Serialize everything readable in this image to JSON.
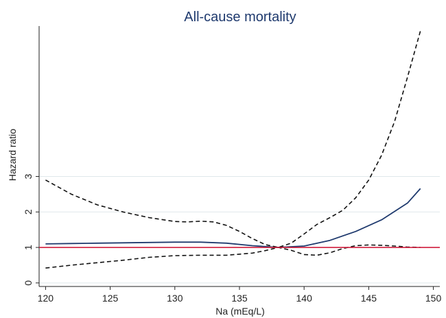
{
  "chart_data": {
    "type": "line",
    "title": "All-cause mortality",
    "xlabel": "Na (mEq/L)",
    "ylabel": "Hazard ratio",
    "xlim": [
      119.5,
      150.5
    ],
    "ylim": [
      -0.1,
      7.2
    ],
    "x_ticks": [
      120,
      125,
      130,
      135,
      140,
      145,
      150
    ],
    "y_ticks": [
      0,
      1,
      2,
      3
    ],
    "grid": "horizontal at labeled y ticks",
    "reference_line": {
      "y": 1,
      "color": "#d01c3c"
    },
    "series": [
      {
        "color": "#1f3a6e",
        "style": "solid",
        "points": [
          [
            120,
            1.1
          ],
          [
            122,
            1.11
          ],
          [
            124,
            1.12
          ],
          [
            126,
            1.13
          ],
          [
            128,
            1.14
          ],
          [
            130,
            1.15
          ],
          [
            132,
            1.15
          ],
          [
            134,
            1.12
          ],
          [
            136,
            1.05
          ],
          [
            138,
            1.0
          ],
          [
            140,
            1.04
          ],
          [
            142,
            1.2
          ],
          [
            144,
            1.45
          ],
          [
            146,
            1.78
          ],
          [
            148,
            2.25
          ],
          [
            149,
            2.66
          ]
        ]
      },
      {
        "color": "#111111",
        "style": "dashed",
        "points": [
          [
            120,
            2.9
          ],
          [
            122,
            2.5
          ],
          [
            124,
            2.2
          ],
          [
            126,
            2.0
          ],
          [
            128,
            1.84
          ],
          [
            130,
            1.73
          ],
          [
            131,
            1.72
          ],
          [
            132,
            1.74
          ],
          [
            133,
            1.72
          ],
          [
            134,
            1.62
          ],
          [
            135,
            1.45
          ],
          [
            136,
            1.25
          ],
          [
            137,
            1.08
          ],
          [
            138,
            1.0
          ],
          [
            139,
            1.12
          ],
          [
            140,
            1.38
          ],
          [
            141,
            1.65
          ],
          [
            142,
            1.84
          ],
          [
            143,
            2.05
          ],
          [
            144,
            2.4
          ],
          [
            145,
            2.9
          ],
          [
            146,
            3.6
          ],
          [
            147,
            4.55
          ],
          [
            148,
            5.8
          ],
          [
            149,
            7.1
          ]
        ]
      },
      {
        "color": "#111111",
        "style": "dashed",
        "points": [
          [
            120,
            0.42
          ],
          [
            122,
            0.5
          ],
          [
            124,
            0.57
          ],
          [
            126,
            0.64
          ],
          [
            128,
            0.72
          ],
          [
            130,
            0.77
          ],
          [
            132,
            0.78
          ],
          [
            134,
            0.78
          ],
          [
            136,
            0.84
          ],
          [
            137,
            0.91
          ],
          [
            138,
            1.0
          ],
          [
            139,
            0.92
          ],
          [
            140,
            0.8
          ],
          [
            141,
            0.78
          ],
          [
            142,
            0.85
          ],
          [
            143,
            0.97
          ],
          [
            144,
            1.05
          ],
          [
            145,
            1.07
          ],
          [
            146,
            1.06
          ],
          [
            147,
            1.04
          ],
          [
            148,
            1.01
          ],
          [
            149,
            1.0
          ]
        ]
      }
    ]
  }
}
